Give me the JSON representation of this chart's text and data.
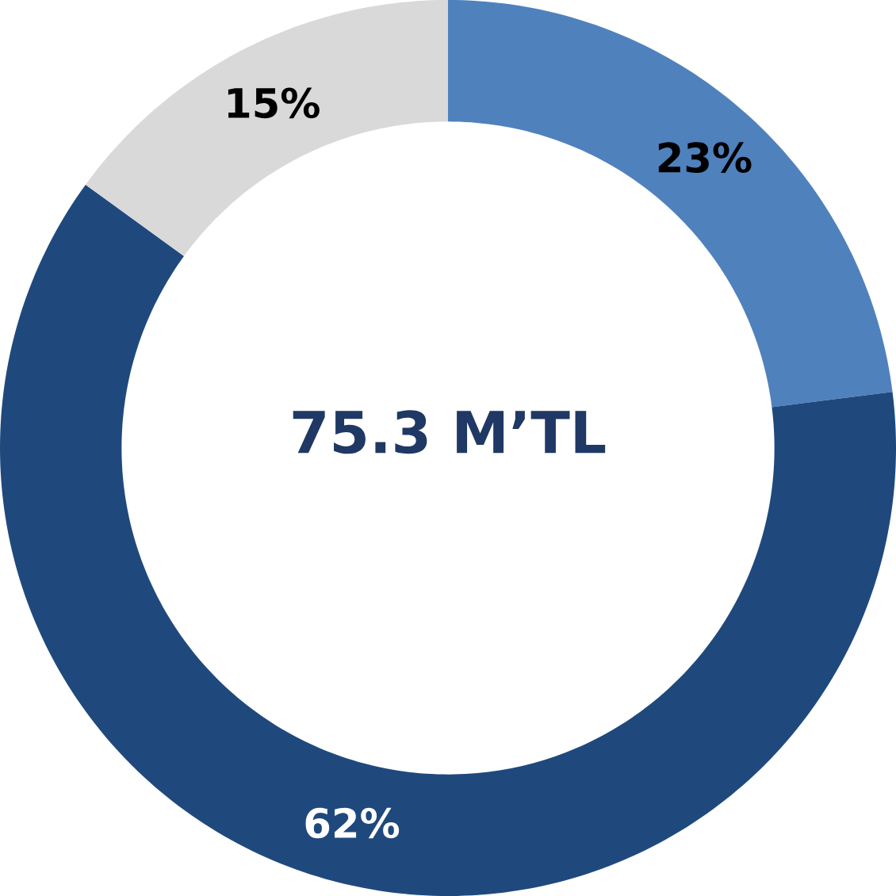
{
  "chart_data": {
    "type": "donut",
    "categories": [
      null,
      null,
      null
    ],
    "values": [
      23,
      62,
      15
    ],
    "colors": [
      "#4f81bd",
      "#1f497d",
      "#d9d9d9"
    ],
    "value_labels": [
      "23%",
      "62%",
      "15%"
    ],
    "annotations": [
      "75.3 M’TL"
    ]
  }
}
